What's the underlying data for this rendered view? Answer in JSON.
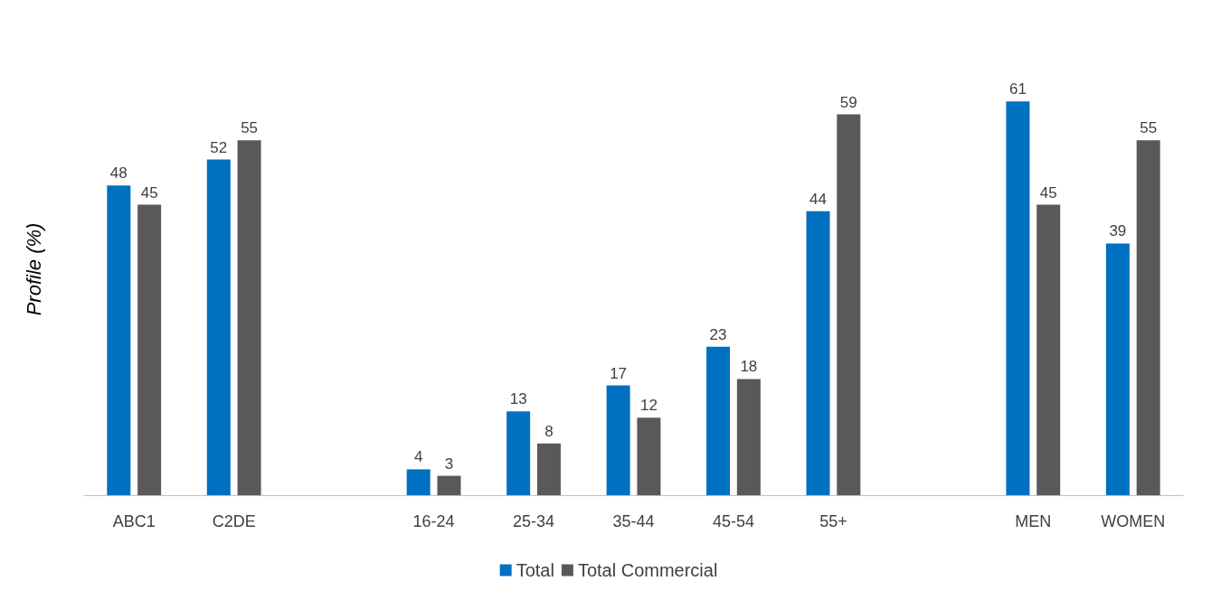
{
  "chart_data": {
    "type": "bar",
    "ylabel": "Profile (%)",
    "categories": [
      "ABC1",
      "C2DE",
      null,
      "16-24",
      "25-34",
      "35-44",
      "45-54",
      "55+",
      null,
      "MEN",
      "WOMEN"
    ],
    "series": [
      {
        "name": "Total",
        "color": "#0070c0",
        "values": [
          48,
          52,
          null,
          4,
          13,
          17,
          23,
          44,
          null,
          61,
          39
        ]
      },
      {
        "name": "Total Commercial",
        "color": "#595959",
        "values": [
          45,
          55,
          null,
          3,
          8,
          12,
          18,
          59,
          null,
          45,
          55
        ]
      }
    ],
    "data_labels": true,
    "legend": "bottom",
    "grid": false
  }
}
